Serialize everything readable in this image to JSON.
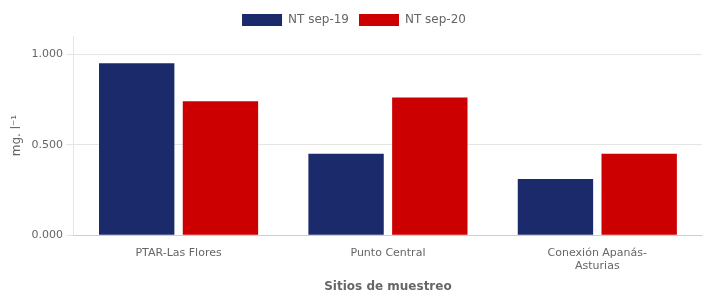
{
  "chart_data": {
    "type": "bar",
    "categories": [
      "PTAR-Las Flores",
      "Punto Central",
      "Conexión Apanás-\nAsturias"
    ],
    "series": [
      {
        "name": "NT sep-19",
        "color": "#1B2A6B",
        "values": [
          0.95,
          0.45,
          0.31
        ]
      },
      {
        "name": "NT sep-20",
        "color": "#CC0000",
        "values": [
          0.74,
          0.76,
          0.45
        ]
      }
    ],
    "x_label": "Sitios de muestreo",
    "y_label": "mg. l⁻¹",
    "ylim": [
      0.0,
      1.1
    ],
    "yticks": [
      {
        "value": 0.0,
        "label": "0.000"
      },
      {
        "value": 0.5,
        "label": "0.500"
      },
      {
        "value": 1.0,
        "label": "1.000"
      }
    ],
    "grid": true,
    "legend": "top"
  }
}
